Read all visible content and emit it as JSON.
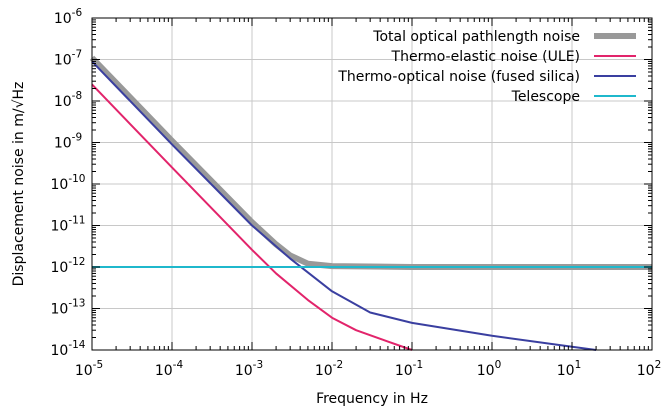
{
  "chart_data": {
    "type": "line",
    "title": "",
    "xlabel": "Frequency in Hz",
    "ylabel": "Displacement noise in m/√Hz",
    "x_scale": "log",
    "y_scale": "log",
    "xlim": [
      1e-05,
      100
    ],
    "ylim": [
      1e-14,
      1e-06
    ],
    "grid": true,
    "legend_position": "top-right",
    "x_ticks": [
      {
        "value": 1e-05,
        "base": "10",
        "exp": "-5"
      },
      {
        "value": 0.0001,
        "base": "10",
        "exp": "-4"
      },
      {
        "value": 0.001,
        "base": "10",
        "exp": "-3"
      },
      {
        "value": 0.01,
        "base": "10",
        "exp": "-2"
      },
      {
        "value": 0.1,
        "base": "10",
        "exp": "-1"
      },
      {
        "value": 1,
        "base": "10",
        "exp": "0"
      },
      {
        "value": 10,
        "base": "10",
        "exp": "1"
      },
      {
        "value": 100,
        "base": "10",
        "exp": "2"
      }
    ],
    "y_ticks": [
      {
        "value": 1e-14,
        "base": "10",
        "exp": "-14"
      },
      {
        "value": 1e-13,
        "base": "10",
        "exp": "-13"
      },
      {
        "value": 1e-12,
        "base": "10",
        "exp": "-12"
      },
      {
        "value": 1e-11,
        "base": "10",
        "exp": "-11"
      },
      {
        "value": 1e-10,
        "base": "10",
        "exp": "-10"
      },
      {
        "value": 1e-09,
        "base": "10",
        "exp": "-9"
      },
      {
        "value": 1e-08,
        "base": "10",
        "exp": "-8"
      },
      {
        "value": 1e-07,
        "base": "10",
        "exp": "-7"
      },
      {
        "value": 1e-06,
        "base": "10",
        "exp": "-6"
      }
    ],
    "series": [
      {
        "name": "Total optical pathlength noise",
        "color": "#999999",
        "x": [
          1e-05,
          0.0001,
          0.001,
          0.002,
          0.003,
          0.005,
          0.01,
          0.1,
          1,
          10,
          100
        ],
        "y": [
          1.1e-07,
          1.1e-09,
          1.2e-11,
          3.5e-12,
          1.9e-12,
          1.2e-12,
          1.05e-12,
          1e-12,
          1e-12,
          1e-12,
          1e-12
        ]
      },
      {
        "name": "Thermo-elastic noise (ULE)",
        "color": "#e2246b",
        "x": [
          1e-05,
          0.0001,
          0.001,
          0.002,
          0.005,
          0.01,
          0.02,
          0.05,
          0.1
        ],
        "y": [
          2.5e-08,
          2.5e-10,
          2.6e-12,
          7e-13,
          1.6e-13,
          6e-14,
          3e-14,
          1.6e-14,
          1e-14
        ]
      },
      {
        "name": "Thermo-optical noise (fused silica)",
        "color": "#3a3fa0",
        "x": [
          1e-05,
          0.0001,
          0.001,
          0.003,
          0.01,
          0.03,
          0.1,
          1,
          10,
          20
        ],
        "y": [
          9e-08,
          9e-10,
          1e-11,
          1.6e-12,
          2.6e-13,
          8e-14,
          4.5e-14,
          2.2e-14,
          1.2e-14,
          1e-14
        ]
      },
      {
        "name": "Telescope",
        "color": "#1fb8cc",
        "x": [
          1e-05,
          100
        ],
        "y": [
          1e-12,
          1e-12
        ]
      }
    ]
  }
}
